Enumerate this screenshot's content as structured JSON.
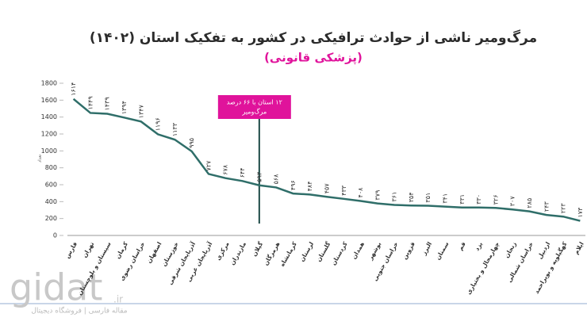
{
  "chart_data": {
    "type": "line",
    "title": "مرگ‌ومیر ناشی از حوادث ترافیکی در کشور به تفکیک استان (۱۴۰۲)",
    "subtitle": "(پزشکی قانونی)",
    "y_label": "تعداد",
    "categories": [
      "فارس",
      "تهران",
      "سیستان و بلوچستان",
      "کرمان",
      "خراسان رضوی",
      "اصفهان",
      "خوزستان",
      "آذربایجان شرقی",
      "آذربایجان غربی",
      "مرکزی",
      "مازندران",
      "گیلان",
      "هرمزگان",
      "کرمانشاه",
      "لرستان",
      "گلستان",
      "کردستان",
      "همدان",
      "بوشهر",
      "خراسان جنوبی",
      "قزوین",
      "البرز",
      "سمنان",
      "قم",
      "یزد",
      "چهارمحال و بختیاری",
      "زنجان",
      "خراسان شمالی",
      "اردبیل",
      "کهگیلویه و بویراحمد",
      "ایلام"
    ],
    "values": [
      1614,
      1449,
      1439,
      1394,
      1347,
      1196,
      1133,
      995,
      727,
      678,
      644,
      593,
      568,
      496,
      484,
      457,
      433,
      408,
      379,
      361,
      354,
      351,
      341,
      331,
      330,
      326,
      307,
      285,
      243,
      223,
      173
    ],
    "value_labels": [
      "۱۶۱۴",
      "۱۴۴۹",
      "۱۴۳۹",
      "۱۳۹۴",
      "۱۳۴۷",
      "۱۱۹۶",
      "۱۱۳۳",
      "۹۹۵",
      "۷۲۷",
      "۶۷۸",
      "۶۴۴",
      "۵۹۳",
      "۵۶۸",
      "۴۹۶",
      "۴۸۴",
      "۴۵۷",
      "۴۳۳",
      "۴۰۸",
      "۳۷۹",
      "۳۶۱",
      "۳۵۴",
      "۳۵۱",
      "۳۴۱",
      "۳۳۱",
      "۳۳۰",
      "۳۲۶",
      "۳۰۷",
      "۲۸۵",
      "۲۴۳",
      "۲۲۳",
      "۱۷۳"
    ],
    "color": "#2f6e69",
    "ylim": [
      0,
      1800
    ],
    "yticks": [
      0,
      200,
      400,
      600,
      800,
      1000,
      1200,
      1400,
      1600,
      1800
    ],
    "grid": false,
    "annotation": {
      "category": "گیلان",
      "lines": [
        "۱۲ استان با ۶۶ درصد",
        "مرگ‌ومیر"
      ],
      "color": "#e0139b"
    }
  },
  "watermark": {
    "brand": "gidat",
    "tld": ".ir",
    "tagline": "مقاله فارسی | فروشگاه دیجیتال"
  }
}
